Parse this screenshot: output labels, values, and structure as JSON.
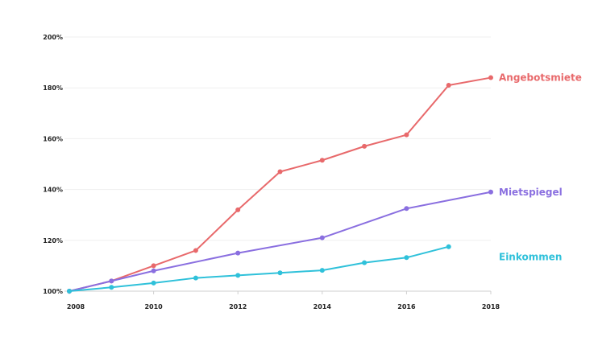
{
  "chart_data": {
    "type": "line",
    "x_ticks": [
      2008,
      2010,
      2012,
      2014,
      2016,
      2018
    ],
    "y_ticks": [
      100,
      120,
      140,
      160,
      180,
      200
    ],
    "y_tick_labels": [
      "100%",
      "120%",
      "140%",
      "160%",
      "180%",
      "200%"
    ],
    "x_tick_labels": [
      "2008",
      "2010",
      "2012",
      "2014",
      "2016",
      "2018"
    ],
    "xlim": [
      2008,
      2018
    ],
    "ylim": [
      100,
      200
    ],
    "grid": "horizontal",
    "legend": "inline-right",
    "series": [
      {
        "name": "Angebotsmiete",
        "color": "#e8696b",
        "x": [
          2008,
          2009,
          2010,
          2011,
          2012,
          2013,
          2014,
          2015,
          2016,
          2017,
          2018
        ],
        "y": [
          100,
          104,
          110,
          116,
          132,
          147,
          151.5,
          157,
          161.5,
          181,
          184
        ]
      },
      {
        "name": "Mietspiegel",
        "color": "#8a6fe0",
        "x": [
          2008,
          2009,
          2010,
          2012,
          2014,
          2016,
          2018
        ],
        "y": [
          100,
          104,
          108,
          115,
          121,
          132.5,
          139
        ]
      },
      {
        "name": "Einkommen",
        "color": "#2fc1da",
        "x": [
          2008,
          2009,
          2010,
          2011,
          2012,
          2013,
          2014,
          2015,
          2016,
          2017
        ],
        "y": [
          100,
          101.5,
          103.2,
          105.2,
          106.2,
          107.2,
          108.2,
          111.2,
          113.2,
          117.5
        ]
      }
    ]
  }
}
